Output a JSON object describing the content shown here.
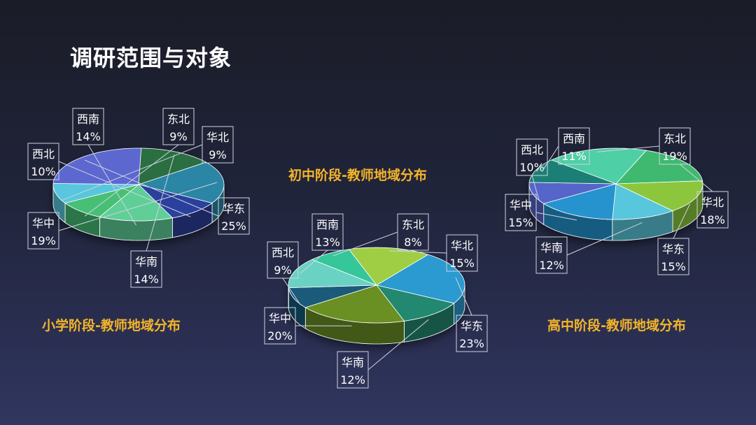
{
  "page": {
    "title": "调研范围与对象"
  },
  "chart_data": [
    {
      "type": "pie",
      "title": "小学阶段-教师地域分布",
      "slices": [
        {
          "name": "东北",
          "value": 9,
          "label": "9%",
          "color": "#47bf74"
        },
        {
          "name": "华北",
          "value": 9,
          "label": "9%",
          "color": "#59c6dd"
        },
        {
          "name": "华东",
          "value": 25,
          "label": "25%",
          "color": "#5c67cf"
        },
        {
          "name": "华南",
          "value": 14,
          "label": "14%",
          "color": "#2a6e43"
        },
        {
          "name": "华中",
          "value": 19,
          "label": "19%",
          "color": "#2a86a4"
        },
        {
          "name": "西北",
          "value": 10,
          "label": "10%",
          "color": "#2c3f9c"
        },
        {
          "name": "西南",
          "value": 14,
          "label": "14%",
          "color": "#5fcf97"
        }
      ]
    },
    {
      "type": "pie",
      "title": "初中阶段-教师地域分布",
      "slices": [
        {
          "name": "东北",
          "value": 8,
          "label": "8%",
          "color": "#34c69a"
        },
        {
          "name": "华北",
          "value": 15,
          "label": "15%",
          "color": "#9fce44"
        },
        {
          "name": "华东",
          "value": 23,
          "label": "23%",
          "color": "#2c9ad0"
        },
        {
          "name": "华南",
          "value": 12,
          "label": "12%",
          "color": "#22886f"
        },
        {
          "name": "华中",
          "value": 20,
          "label": "20%",
          "color": "#6a8f22"
        },
        {
          "name": "西北",
          "value": 9,
          "label": "9%",
          "color": "#1c5a7a"
        },
        {
          "name": "西南",
          "value": 13,
          "label": "13%",
          "color": "#6ad2c2"
        }
      ]
    },
    {
      "type": "pie",
      "title": "高中阶段-教师地域分布",
      "slices": [
        {
          "name": "东北",
          "value": 19,
          "label": "19%",
          "color": "#50cfa5"
        },
        {
          "name": "华北",
          "value": 18,
          "label": "18%",
          "color": "#3fb970"
        },
        {
          "name": "华东",
          "value": 15,
          "label": "15%",
          "color": "#8cc63e"
        },
        {
          "name": "华南",
          "value": 12,
          "label": "12%",
          "color": "#59c6dd"
        },
        {
          "name": "华中",
          "value": 15,
          "label": "15%",
          "color": "#2793cf"
        },
        {
          "name": "西北",
          "value": 10,
          "label": "10%",
          "color": "#5765c9"
        },
        {
          "name": "西南",
          "value": 11,
          "label": "11%",
          "color": "#1e7f75"
        }
      ]
    }
  ]
}
